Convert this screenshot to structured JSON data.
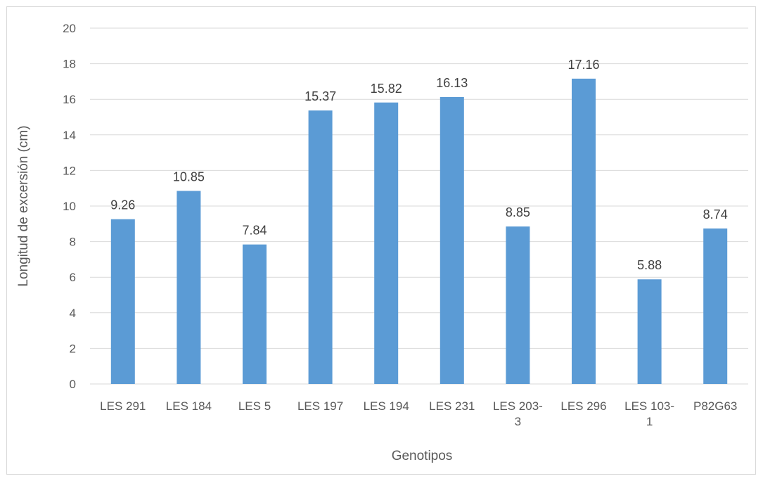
{
  "chart_data": {
    "type": "bar",
    "title": "",
    "xlabel": "Genotipos",
    "ylabel": "Longitud de excersión (cm)",
    "ylim": [
      0,
      20
    ],
    "yticks": [
      0,
      2,
      4,
      6,
      8,
      10,
      12,
      14,
      16,
      18,
      20
    ],
    "grid": true,
    "legend": "none",
    "categories": [
      [
        "LES 291"
      ],
      [
        "LES 184"
      ],
      [
        "LES 5"
      ],
      [
        "LES 197"
      ],
      [
        "LES 194"
      ],
      [
        "LES 231"
      ],
      [
        "LES 203-",
        "3"
      ],
      [
        "LES 296"
      ],
      [
        "LES 103-",
        "1"
      ],
      [
        "P82G63"
      ]
    ],
    "values": [
      9.26,
      10.85,
      7.84,
      15.37,
      15.82,
      16.13,
      8.85,
      17.16,
      5.88,
      8.74
    ],
    "data_labels": [
      "9.26",
      "10.85",
      "7.84",
      "15.37",
      "15.82",
      "16.13",
      "8.85",
      "17.16",
      "5.88",
      "8.74"
    ],
    "bar_color": "#5b9bd5",
    "grid_color": "#d9d9d9"
  }
}
